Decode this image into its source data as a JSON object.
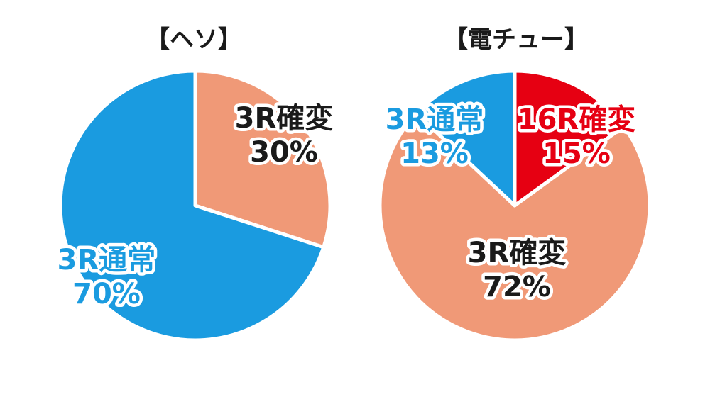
{
  "colors": {
    "normal": "#1a9be0",
    "kakuhen": "#f09977",
    "kakuhen16": "#e60012",
    "text_dark": "#1a1a1a"
  },
  "chart_data": [
    {
      "type": "pie",
      "title": "【ヘソ】",
      "slices": [
        {
          "name": "3R確変",
          "value": 30,
          "label": "30%",
          "color": "#f09977"
        },
        {
          "name": "3R通常",
          "value": 70,
          "label": "70%",
          "color": "#1a9be0"
        }
      ]
    },
    {
      "type": "pie",
      "title": "【電チュー】",
      "slices": [
        {
          "name": "16R確変",
          "value": 15,
          "label": "15%",
          "color": "#e60012"
        },
        {
          "name": "3R確変",
          "value": 72,
          "label": "72%",
          "color": "#f09977"
        },
        {
          "name": "3R通常",
          "value": 13,
          "label": "13%",
          "color": "#1a9be0"
        }
      ]
    }
  ]
}
